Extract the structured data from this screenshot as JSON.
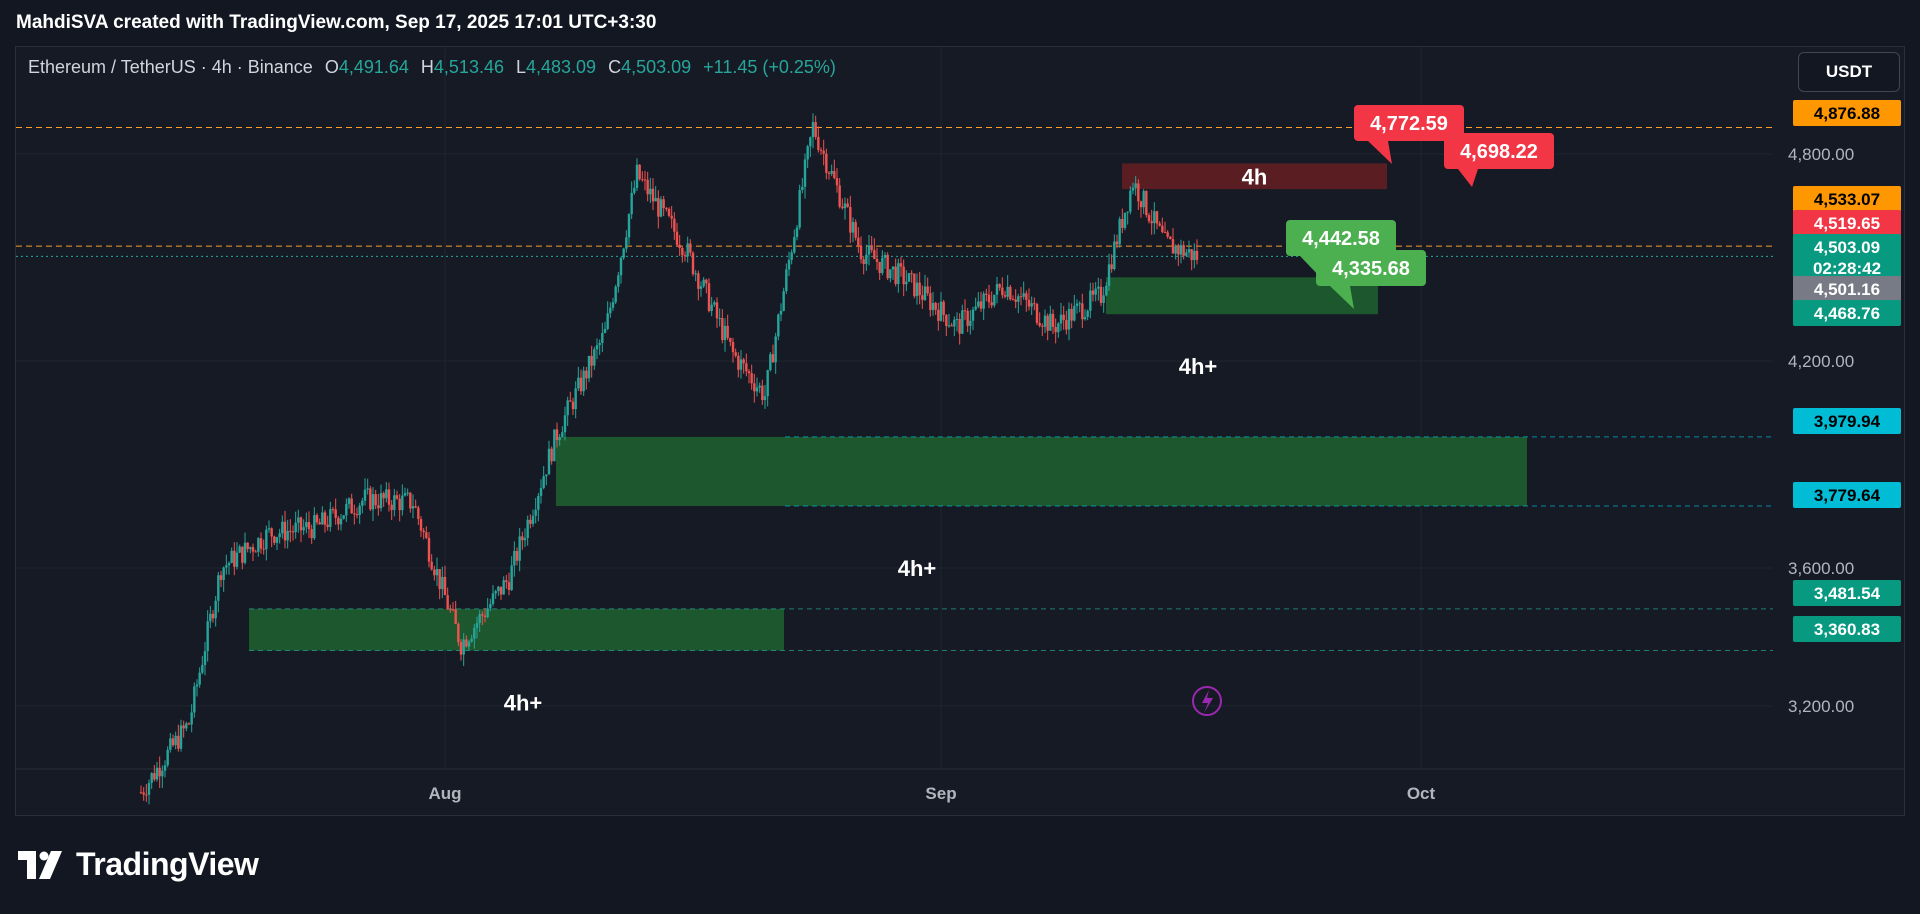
{
  "header": {
    "credit": "MahdiSVA created with TradingView.com, Sep 17, 2025 17:01 UTC+3:30"
  },
  "legend": {
    "symbol": "Ethereum / TetherUS · 4h · Binance",
    "o_key": "O",
    "o_val": "4,491.64",
    "h_key": "H",
    "h_val": "4,513.46",
    "l_key": "L",
    "l_val": "4,483.09",
    "c_key": "C",
    "c_val": "4,503.09",
    "change": "+11.45 (+0.25%)"
  },
  "currency_button": "USDT",
  "brand": "TradingView",
  "colors": {
    "up": "#26a69a",
    "down": "#ef5350",
    "demand_zone": "#1e5b2e",
    "supply_zone": "#5e1f22",
    "orange_line": "#f89c2b",
    "cyan_badge": "#00bcd4",
    "green_callout": "#4caf50",
    "red_callout": "#f23645"
  },
  "chart_data": {
    "type": "candlestick",
    "symbol": "ETHUSDT",
    "interval": "4h",
    "y_axis_ticks": [
      "4,800.00",
      "4,200.00",
      "3,600.00",
      "3,200.00"
    ],
    "x_axis_ticks": [
      "Aug",
      "Sep",
      "Oct"
    ],
    "price_badges": [
      {
        "label": "4,876.88",
        "price": 4876.88,
        "style": "orange"
      },
      {
        "label": "4,533.07",
        "price": 4533.07,
        "style": "orange"
      },
      {
        "label": "4,519.65",
        "price": 4519.65,
        "style": "red"
      },
      {
        "label": "4,503.09",
        "price": 4503.09,
        "style": "green",
        "sub": "02:28:42"
      },
      {
        "label": "4,501.16",
        "price": 4501.16,
        "style": "gray"
      },
      {
        "label": "4,468.76",
        "price": 4468.76,
        "style": "teal"
      },
      {
        "label": "3,979.94",
        "price": 3979.94,
        "style": "cyan"
      },
      {
        "label": "3,779.64",
        "price": 3779.64,
        "style": "cyan"
      },
      {
        "label": "3,481.54",
        "price": 3481.54,
        "style": "teal"
      },
      {
        "label": "3,360.83",
        "price": 3360.83,
        "style": "teal"
      }
    ],
    "zones": [
      {
        "label": "4h",
        "kind": "supply",
        "top": 4772.59,
        "bottom": 4698.22
      },
      {
        "label": "4h+",
        "kind": "demand",
        "top": 4442.58,
        "bottom": 4335.68
      },
      {
        "label": "4h+",
        "kind": "demand",
        "top": 3979.94,
        "bottom": 3779.64
      },
      {
        "label": "4h+",
        "kind": "demand",
        "top": 3481.54,
        "bottom": 3360.83
      }
    ],
    "callouts": [
      {
        "label": "4,772.59",
        "kind": "red"
      },
      {
        "label": "4,698.22",
        "kind": "red"
      },
      {
        "label": "4,442.58",
        "kind": "green"
      },
      {
        "label": "4,335.68",
        "kind": "green"
      }
    ],
    "price_path": [
      {
        "date": "Jul 13",
        "price": 2950
      },
      {
        "date": "Jul 16",
        "price": 3150
      },
      {
        "date": "Jul 18",
        "price": 3600
      },
      {
        "date": "Jul 21",
        "price": 3700
      },
      {
        "date": "Jul 24",
        "price": 3720
      },
      {
        "date": "Jul 27",
        "price": 3800
      },
      {
        "date": "Jul 30",
        "price": 3790
      },
      {
        "date": "Aug 2",
        "price": 3380
      },
      {
        "date": "Aug 5",
        "price": 3570
      },
      {
        "date": "Aug 8",
        "price": 3990
      },
      {
        "date": "Aug 11",
        "price": 4280
      },
      {
        "date": "Aug 13",
        "price": 4740
      },
      {
        "date": "Aug 16",
        "price": 4530
      },
      {
        "date": "Aug 19",
        "price": 4220
      },
      {
        "date": "Aug 21",
        "price": 4100
      },
      {
        "date": "Aug 24",
        "price": 4880
      },
      {
        "date": "Aug 27",
        "price": 4520
      },
      {
        "date": "Aug 30",
        "price": 4430
      },
      {
        "date": "Sep 2",
        "price": 4300
      },
      {
        "date": "Sep 5",
        "price": 4420
      },
      {
        "date": "Sep 8",
        "price": 4300
      },
      {
        "date": "Sep 11",
        "price": 4390
      },
      {
        "date": "Sep 13",
        "price": 4720
      },
      {
        "date": "Sep 15",
        "price": 4540
      },
      {
        "date": "Sep 17",
        "price": 4503
      }
    ]
  }
}
